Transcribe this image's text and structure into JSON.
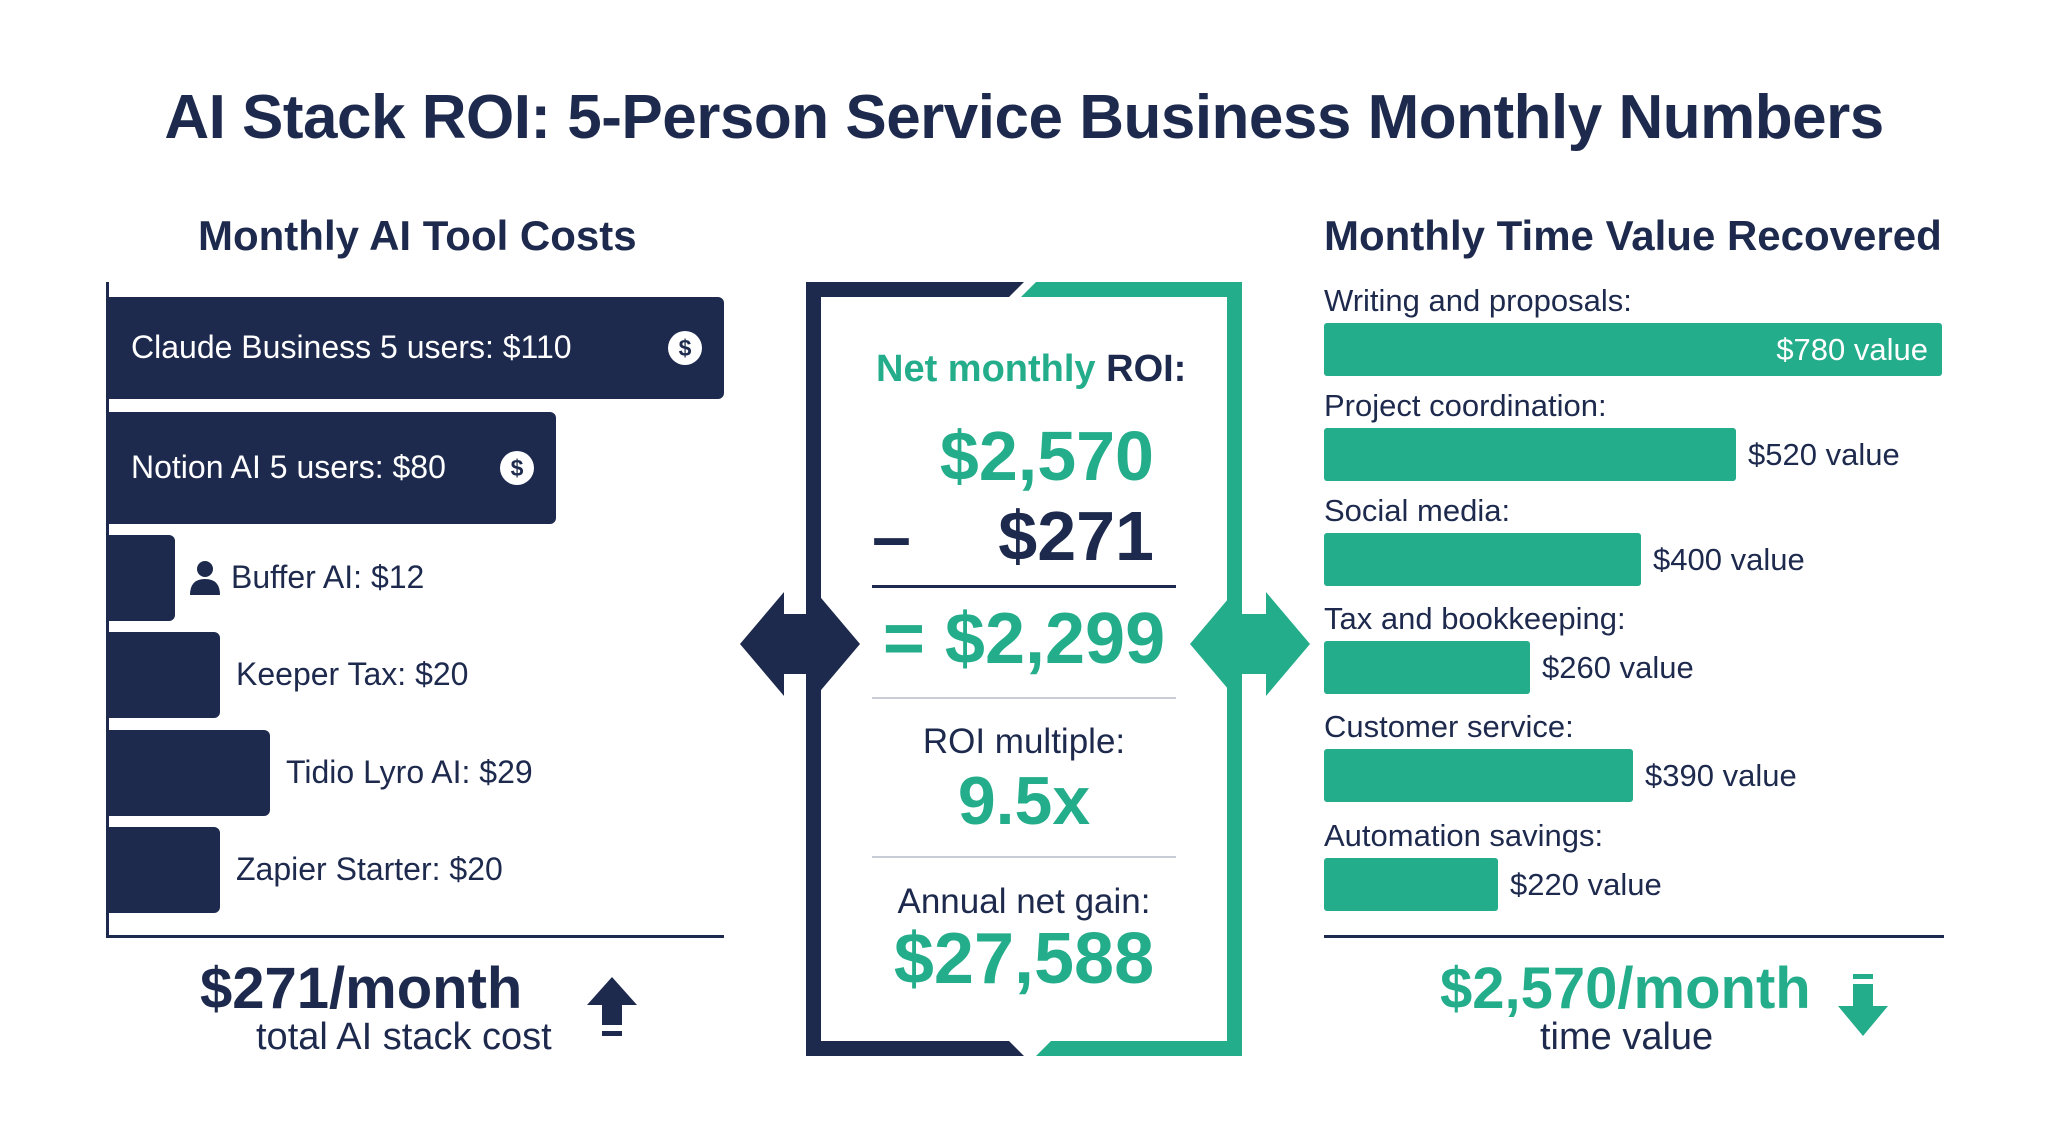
{
  "title": "AI Stack ROI: 5-Person Service Business Monthly Numbers",
  "colors": {
    "navy": "#1d2a4d",
    "green": "#23ad8a"
  },
  "chart_data": [
    {
      "type": "bar",
      "orientation": "horizontal",
      "title": "Monthly AI Tool Costs",
      "categories": [
        "Claude Business 5 users",
        "Notion AI 5 users",
        "Buffer AI",
        "Keeper Tax",
        "Tidio Lyro AI",
        "Zapier Starter"
      ],
      "values": [
        110,
        80,
        12,
        20,
        29,
        20
      ],
      "labels": [
        "Claude Business 5 users: $110",
        "Notion AI 5 users: $80",
        "Buffer AI: $12",
        "Keeper Tax: $20",
        "Tidio Lyro AI: $29",
        "Zapier Starter: $20"
      ],
      "icons": [
        "dollar-icon",
        "dollar-icon",
        "person-icon",
        "",
        "",
        ""
      ],
      "xlim": [
        0,
        110
      ],
      "total_value": "$271/month",
      "total_label": "total AI stack cost",
      "total_icon": "up-arrow-icon"
    },
    {
      "type": "bar",
      "orientation": "horizontal",
      "title": "Monthly Time Value Recovered",
      "categories": [
        "Writing and proposals:",
        "Project coordination:",
        "Social media:",
        "Tax and bookkeeping:",
        "Customer service:",
        "Automation savings:"
      ],
      "values": [
        780,
        520,
        400,
        260,
        390,
        220
      ],
      "labels": [
        "$780 value",
        "$520 value",
        "$400 value",
        "$260 value",
        "$390 value",
        "$220 value"
      ],
      "xlim": [
        0,
        780
      ],
      "total_value": "$2,570/month",
      "total_label": "time value",
      "total_icon": "down-arrow-icon"
    }
  ],
  "roi": {
    "label_part1": "Net monthly",
    "label_part2": "ROI:",
    "gross": "$2,570",
    "minus": "–",
    "cost": "$271",
    "net": "= $2,299",
    "multiple_label": "ROI multiple:",
    "multiple_value": "9.5x",
    "annual_label": "Annual net gain:",
    "annual_value": "$27,588"
  }
}
